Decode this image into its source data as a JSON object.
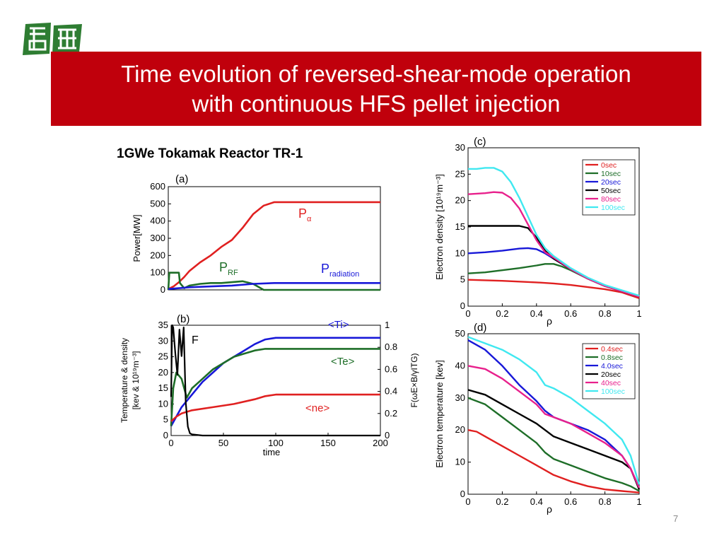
{
  "title": {
    "line1": "Time evolution of reversed-shear-mode operation",
    "line2": "with continuous HFS pellet injection"
  },
  "subtitle": "1GWe Tokamak Reactor TR-1",
  "page_number": "7",
  "colors": {
    "title_bar": "#c0000c",
    "red": "#e02020",
    "green": "#1e6e28",
    "blue": "#1818d8",
    "black": "#000000",
    "magenta": "#e8208c",
    "cyan": "#40e8f0",
    "logo_green": "#2e7d32"
  },
  "chart_data": [
    {
      "id": "a",
      "type": "line",
      "panel_label": "(a)",
      "xlim": [
        0,
        200
      ],
      "ylim": [
        0,
        600
      ],
      "yticks": [
        "0",
        "100",
        "200",
        "300",
        "400",
        "500",
        "600"
      ],
      "ylabel": "Power[MW]",
      "series": [
        {
          "name": "P",
          "sub": "α",
          "color": "red",
          "x": [
            0,
            5,
            10,
            15,
            20,
            30,
            40,
            50,
            60,
            70,
            80,
            90,
            100,
            110,
            150,
            200
          ],
          "y": [
            5,
            20,
            45,
            75,
            110,
            160,
            200,
            250,
            290,
            360,
            440,
            490,
            510,
            510,
            510,
            510
          ]
        },
        {
          "name": "P",
          "sub": "RF",
          "color": "green",
          "x": [
            0,
            1,
            2,
            10,
            11,
            15,
            20,
            30,
            40,
            50,
            60,
            70,
            80,
            90,
            100,
            150,
            200
          ],
          "y": [
            0,
            100,
            100,
            100,
            40,
            10,
            25,
            35,
            40,
            40,
            45,
            50,
            35,
            0,
            0,
            0,
            0
          ]
        },
        {
          "name": "P",
          "sub": "radiation",
          "color": "blue",
          "x": [
            0,
            10,
            20,
            40,
            60,
            80,
            100,
            150,
            200
          ],
          "y": [
            5,
            10,
            15,
            20,
            25,
            35,
            40,
            40,
            40
          ]
        }
      ]
    },
    {
      "id": "b",
      "type": "line",
      "panel_label": "(b)",
      "xlim": [
        0,
        200
      ],
      "xticks": [
        "0",
        "50",
        "100",
        "150",
        "200"
      ],
      "xlabel": "time",
      "ylim_left": [
        0,
        35
      ],
      "yticks_left": [
        "0",
        "5",
        "10",
        "15",
        "20",
        "25",
        "30",
        "35"
      ],
      "ylabel_left_line1": "Temperature & density",
      "ylabel_left_line2": "[kev & 10¹⁹m⁻³]",
      "ylim_right": [
        0,
        1
      ],
      "yticks_right": [
        "0",
        "0.2",
        "0.4",
        "0.6",
        "0.8",
        "1"
      ],
      "ylabel_right": "F(ωE×B/γITG)",
      "series": [
        {
          "name": "<Ti>",
          "color": "blue",
          "axis": "left",
          "x": [
            0,
            5,
            10,
            20,
            30,
            40,
            50,
            60,
            70,
            80,
            90,
            100,
            110,
            150,
            200
          ],
          "y": [
            3,
            6,
            9,
            13,
            17,
            20,
            23,
            25,
            27,
            29,
            30.5,
            31,
            31,
            31,
            31
          ]
        },
        {
          "name": "<Te>",
          "color": "green",
          "axis": "left",
          "x": [
            0,
            2,
            5,
            10,
            15,
            20,
            30,
            40,
            50,
            60,
            70,
            80,
            90,
            100,
            150,
            200
          ],
          "y": [
            3,
            15,
            20,
            18,
            12,
            15,
            18,
            21,
            23,
            25,
            26,
            27,
            27.5,
            27.5,
            27.5,
            27.5
          ]
        },
        {
          "name": "<ne>",
          "color": "red",
          "axis": "left",
          "x": [
            0,
            5,
            10,
            20,
            40,
            60,
            80,
            90,
            100,
            150,
            200
          ],
          "y": [
            4.5,
            6,
            7,
            8,
            9,
            10,
            11.5,
            12.5,
            13,
            13,
            13
          ]
        },
        {
          "name": "F",
          "color": "black",
          "axis": "right",
          "x": [
            0,
            1,
            2,
            4,
            6,
            8,
            10,
            12,
            14,
            16,
            18,
            20,
            30,
            200
          ],
          "y": [
            0.35,
            1.0,
            0.98,
            0.75,
            0.55,
            0.96,
            0.72,
            0.98,
            0.3,
            0.08,
            0.02,
            0.01,
            0,
            0
          ]
        }
      ]
    },
    {
      "id": "c",
      "type": "line",
      "panel_label": "(c)",
      "xlim": [
        0,
        1
      ],
      "xticks": [
        "0",
        "0.2",
        "0.4",
        "0.6",
        "0.8",
        "1"
      ],
      "xlabel": "ρ",
      "ylim": [
        0,
        30
      ],
      "yticks": [
        "0",
        "5",
        "10",
        "15",
        "20",
        "25",
        "30"
      ],
      "ylabel": "Electron density [10¹⁹m⁻³]",
      "legend": "top-right",
      "series": [
        {
          "name": "0sec",
          "color": "red",
          "x": [
            0,
            0.2,
            0.4,
            0.5,
            0.6,
            0.7,
            0.8,
            0.9,
            1.0
          ],
          "y": [
            5,
            4.8,
            4.5,
            4.3,
            4.0,
            3.6,
            3.2,
            2.6,
            1.5
          ]
        },
        {
          "name": "10sec",
          "color": "green",
          "x": [
            0,
            0.1,
            0.2,
            0.3,
            0.4,
            0.45,
            0.5,
            0.55,
            0.6,
            0.7,
            0.8,
            0.9,
            1.0
          ],
          "y": [
            6.2,
            6.4,
            6.8,
            7.2,
            7.7,
            8.0,
            8.0,
            7.5,
            6.8,
            5.2,
            3.8,
            2.8,
            1.8
          ]
        },
        {
          "name": "20sec",
          "color": "blue",
          "x": [
            0,
            0.1,
            0.2,
            0.3,
            0.35,
            0.4,
            0.45,
            0.5,
            0.6,
            0.7,
            0.8,
            0.9,
            1.0
          ],
          "y": [
            10,
            10.2,
            10.5,
            10.9,
            11.0,
            10.8,
            10.0,
            9.0,
            7.0,
            5.2,
            3.8,
            2.8,
            1.8
          ]
        },
        {
          "name": "50sec",
          "color": "black",
          "x": [
            0,
            0.1,
            0.2,
            0.3,
            0.35,
            0.4,
            0.45,
            0.5,
            0.6,
            0.7,
            0.8,
            0.9,
            1.0
          ],
          "y": [
            15.2,
            15.2,
            15.2,
            15.2,
            14.8,
            13.0,
            10.5,
            9.0,
            7.0,
            5.2,
            3.8,
            2.8,
            1.8
          ]
        },
        {
          "name": "80sec",
          "color": "magenta",
          "x": [
            0,
            0.1,
            0.15,
            0.2,
            0.25,
            0.3,
            0.35,
            0.4,
            0.45,
            0.5,
            0.6,
            0.7,
            0.8,
            0.9,
            1.0
          ],
          "y": [
            21.2,
            21.4,
            21.6,
            21.5,
            20.5,
            18.5,
            15.5,
            12.5,
            10.2,
            9.2,
            7.0,
            5.2,
            3.8,
            2.8,
            1.8
          ]
        },
        {
          "name": "100sec",
          "color": "cyan",
          "x": [
            0,
            0.05,
            0.1,
            0.15,
            0.2,
            0.25,
            0.3,
            0.35,
            0.4,
            0.45,
            0.5,
            0.6,
            0.7,
            0.8,
            0.9,
            1.0
          ],
          "y": [
            26,
            26,
            26.2,
            26.2,
            25.5,
            23.5,
            20.5,
            17.0,
            13.5,
            11.0,
            9.5,
            7.2,
            5.4,
            4.0,
            3.0,
            2.0
          ]
        }
      ]
    },
    {
      "id": "d",
      "type": "line",
      "panel_label": "(d)",
      "xlim": [
        0,
        1
      ],
      "xticks": [
        "0",
        "0.2",
        "0.4",
        "0.6",
        "0.8",
        "1"
      ],
      "xlabel": "ρ",
      "ylim": [
        0,
        50
      ],
      "yticks": [
        "0",
        "10",
        "20",
        "30",
        "40",
        "50"
      ],
      "ylabel": "Electron temperature [kev]",
      "legend": "top-right",
      "series": [
        {
          "name": "0.4sec",
          "color": "red",
          "x": [
            0,
            0.05,
            0.1,
            0.2,
            0.3,
            0.4,
            0.5,
            0.6,
            0.7,
            0.8,
            0.9,
            1.0
          ],
          "y": [
            20,
            19.5,
            18,
            15,
            12,
            9,
            6,
            4,
            2.5,
            1.5,
            1,
            0.5
          ]
        },
        {
          "name": "0.8sec",
          "color": "green",
          "x": [
            0,
            0.1,
            0.2,
            0.3,
            0.4,
            0.45,
            0.5,
            0.6,
            0.7,
            0.8,
            0.9,
            0.95,
            1.0
          ],
          "y": [
            30,
            28,
            24,
            20,
            16,
            13,
            11,
            9,
            7,
            5,
            3.5,
            2.5,
            1
          ]
        },
        {
          "name": "4.0sec",
          "color": "blue",
          "x": [
            0,
            0.1,
            0.2,
            0.3,
            0.4,
            0.45,
            0.5,
            0.6,
            0.7,
            0.8,
            0.9,
            0.95,
            1.0
          ],
          "y": [
            48,
            45,
            40,
            34,
            29,
            26,
            24,
            22,
            20,
            17,
            12,
            8,
            2
          ]
        },
        {
          "name": "20sec",
          "color": "black",
          "x": [
            0,
            0.1,
            0.2,
            0.3,
            0.4,
            0.45,
            0.5,
            0.6,
            0.7,
            0.8,
            0.9,
            0.95,
            1.0
          ],
          "y": [
            32.5,
            31,
            28,
            25,
            22,
            20,
            18,
            16,
            14,
            12,
            10,
            8,
            1.5
          ]
        },
        {
          "name": "40sec",
          "color": "magenta",
          "x": [
            0,
            0.1,
            0.2,
            0.3,
            0.4,
            0.45,
            0.5,
            0.6,
            0.7,
            0.8,
            0.9,
            0.95,
            1.0
          ],
          "y": [
            40,
            39,
            36,
            32,
            28,
            25,
            24,
            22,
            19,
            16,
            12,
            8,
            2
          ]
        },
        {
          "name": "100sec",
          "color": "cyan",
          "x": [
            0,
            0.05,
            0.1,
            0.2,
            0.3,
            0.4,
            0.45,
            0.5,
            0.6,
            0.7,
            0.8,
            0.9,
            0.95,
            1.0
          ],
          "y": [
            49,
            48,
            47,
            45,
            42,
            38,
            34,
            33,
            30,
            26,
            22,
            17,
            12,
            3
          ]
        }
      ]
    }
  ]
}
